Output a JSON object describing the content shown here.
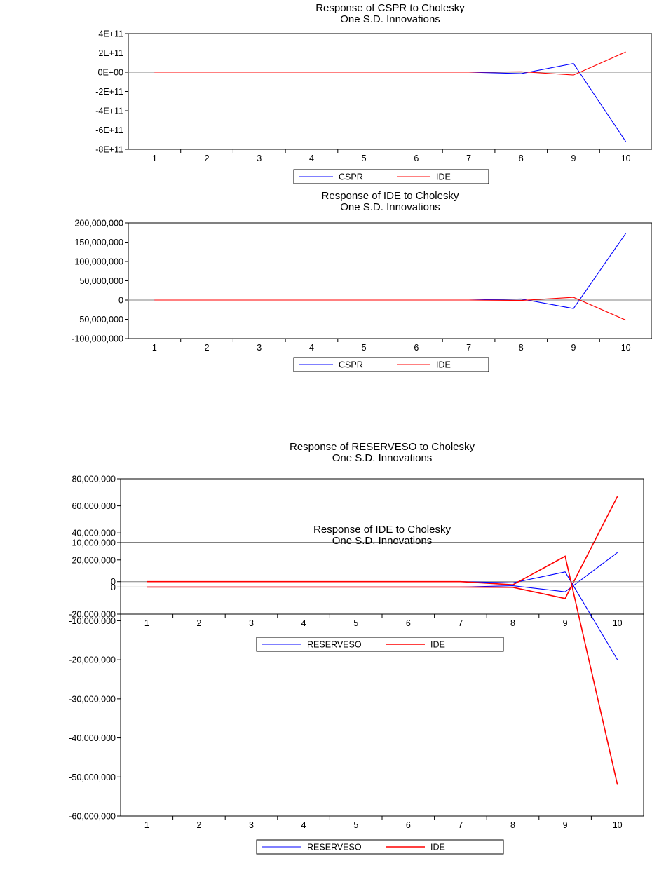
{
  "chart_data": [
    {
      "type": "line",
      "title": "Response of CSPR to Cholesky",
      "subtitle": "One S.D. Innovations",
      "categories": [
        "1",
        "2",
        "3",
        "4",
        "5",
        "6",
        "7",
        "8",
        "9",
        "10"
      ],
      "yticks": [
        "4E+11",
        "2E+11",
        "0E+00",
        "-2E+11",
        "-4E+11",
        "-6E+11",
        "-8E+11"
      ],
      "ylim": [
        -800000000000,
        400000000000
      ],
      "series": [
        {
          "name": "CSPR",
          "color": "#0000ff",
          "values": [
            0,
            0,
            0,
            0,
            0,
            0,
            0,
            -15000000000,
            90000000000,
            -720000000000
          ]
        },
        {
          "name": "IDE",
          "color": "#ff0000",
          "values": [
            0,
            0,
            0,
            0,
            0,
            0,
            0,
            5000000000,
            -30000000000,
            210000000000
          ]
        }
      ],
      "zero_line": true,
      "legend": "bottom-center"
    },
    {
      "type": "line",
      "title": "Response of IDE to Cholesky",
      "subtitle": "One S.D. Innovations",
      "categories": [
        "1",
        "2",
        "3",
        "4",
        "5",
        "6",
        "7",
        "8",
        "9",
        "10"
      ],
      "yticks": [
        "200,000,000",
        "150,000,000",
        "100,000,000",
        "50,000,000",
        "0",
        "-50,000,000",
        "-100,000,000"
      ],
      "ylim": [
        -100000000,
        200000000
      ],
      "series": [
        {
          "name": "CSPR",
          "color": "#0000ff",
          "values": [
            0,
            0,
            0,
            0,
            0,
            0,
            0,
            3000000,
            -22000000,
            173000000
          ]
        },
        {
          "name": "IDE",
          "color": "#ff0000",
          "values": [
            0,
            0,
            0,
            0,
            0,
            0,
            0,
            -1000000,
            7000000,
            -52000000
          ]
        }
      ],
      "zero_line": true,
      "legend": "bottom-center"
    },
    {
      "type": "line",
      "title": "Response of RESERVESO to Cholesky",
      "subtitle": "One S.D. Innovations",
      "categories": [
        "1",
        "2",
        "3",
        "4",
        "5",
        "6",
        "7",
        "8",
        "9",
        "10"
      ],
      "yticks": [
        "80,000,000",
        "60,000,000",
        "40,000,000",
        "20,000,000",
        "0",
        "-20,000,000"
      ],
      "ylim": [
        -20000000,
        80000000
      ],
      "series": [
        {
          "name": "RESERVESO",
          "color": "#0000ff",
          "values": [
            0,
            0,
            0,
            0,
            0,
            0,
            0,
            1000000,
            -3500000,
            25500000
          ]
        },
        {
          "name": "IDE",
          "color": "#ff0000",
          "values": [
            0,
            0,
            0,
            0,
            0,
            0,
            0,
            -200000,
            -8500000,
            67000000
          ]
        }
      ],
      "zero_line": true,
      "legend": "bottom-center"
    },
    {
      "type": "line",
      "title": "Response of IDE to Cholesky",
      "subtitle": "One S.D. Innovations",
      "categories": [
        "1",
        "2",
        "3",
        "4",
        "5",
        "6",
        "7",
        "8",
        "9",
        "10"
      ],
      "yticks": [
        "10,000,000",
        "0",
        "-10,000,000",
        "-20,000,000",
        "-30,000,000",
        "-40,000,000",
        "-50,000,000",
        "-60,000,000"
      ],
      "ylim": [
        -60000000,
        10000000
      ],
      "series": [
        {
          "name": "RESERVESO",
          "color": "#0000ff",
          "values": [
            0,
            0,
            0,
            0,
            0,
            0,
            0,
            -300000,
            2500000,
            -20000000
          ]
        },
        {
          "name": "IDE",
          "color": "#ff0000",
          "values": [
            0,
            0,
            0,
            0,
            0,
            0,
            0,
            -800000,
            6500000,
            -52000000
          ]
        }
      ],
      "zero_line": true,
      "legend": "bottom-center"
    }
  ]
}
